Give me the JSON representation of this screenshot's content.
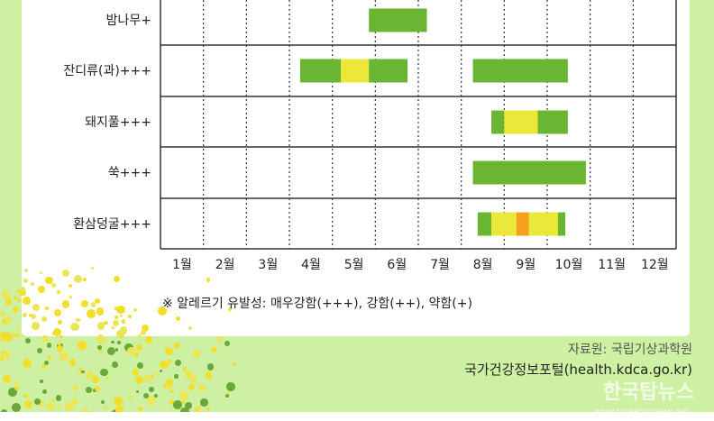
{
  "chart_data": {
    "type": "gantt",
    "categories": [
      "밤나무+",
      "잔디류(과)+++",
      "돼지풀+++",
      "쑥+++",
      "환삼덩굴+++"
    ],
    "x_tick_labels": [
      "1월",
      "2월",
      "3월",
      "4월",
      "5월",
      "6월",
      "7월",
      "8월",
      "9월",
      "10월",
      "11월",
      "12월"
    ],
    "x_unit": "month",
    "xlim": [
      1,
      13
    ],
    "grid": true,
    "level_colors": {
      "low": "#6ab632",
      "mid": "#ece83a",
      "high": "#f5a01f"
    },
    "series": [
      {
        "category": "밤나무+",
        "segments": [
          [
            5.85,
            7.2,
            "low"
          ]
        ]
      },
      {
        "category": "잔디류(과)+++",
        "segments": [
          [
            4.25,
            5.2,
            "low"
          ],
          [
            5.2,
            5.85,
            "mid"
          ],
          [
            5.85,
            6.75,
            "low"
          ],
          [
            8.27,
            10.48,
            "low"
          ]
        ]
      },
      {
        "category": "돼지풀+++",
        "segments": [
          [
            8.7,
            9.0,
            "low"
          ],
          [
            9.0,
            9.78,
            "mid"
          ],
          [
            9.78,
            10.48,
            "low"
          ]
        ]
      },
      {
        "category": "쑥+++",
        "segments": [
          [
            8.27,
            10.9,
            "low"
          ]
        ]
      },
      {
        "category": "환삼덩굴+++",
        "segments": [
          [
            8.38,
            8.7,
            "low"
          ],
          [
            8.7,
            9.28,
            "mid"
          ],
          [
            9.28,
            9.57,
            "high"
          ],
          [
            9.57,
            10.25,
            "mid"
          ],
          [
            10.25,
            10.42,
            "low"
          ]
        ]
      }
    ]
  },
  "note": "※ 알레르기 유발성: 매우강함(+++), 강함(++), 약함(+)",
  "source": "자료원: 국립기상과학원",
  "portal": "국가건강정보포털(health.kdca.go.kr)",
  "watermark": {
    "name": "한국탑뉴스",
    "url": "www.koreatopnews.net"
  }
}
